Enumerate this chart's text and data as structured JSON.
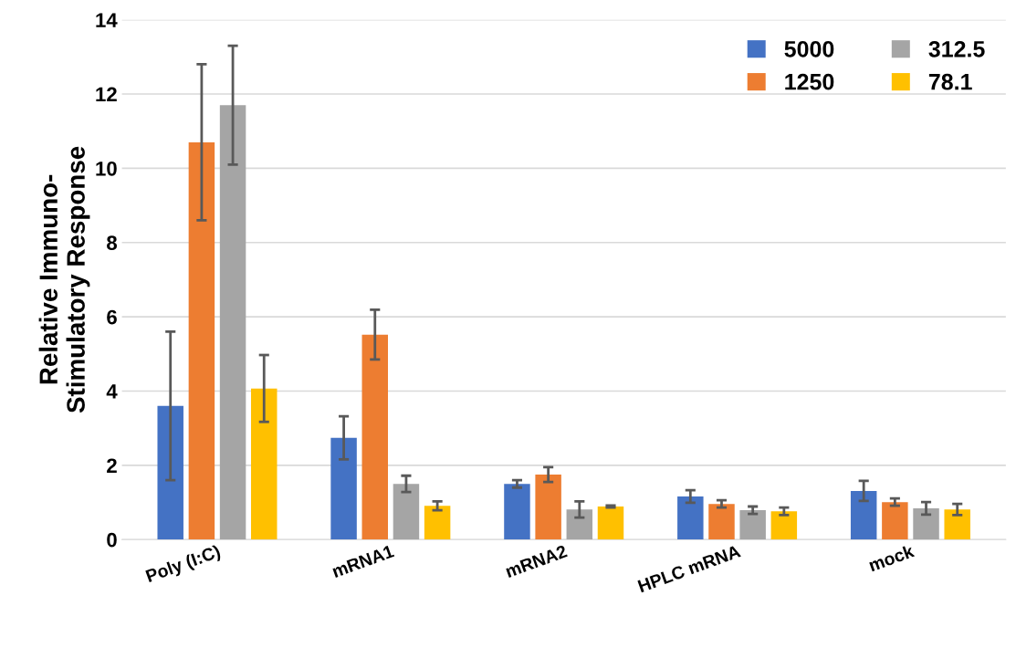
{
  "chart_data": {
    "type": "bar",
    "ylabel": "Relative Immuno-\nStimulatory Response",
    "categories": [
      "Poly (I:C)",
      "mRNA1",
      "mRNA2",
      "HPLC mRNA",
      "mock"
    ],
    "series": [
      {
        "name": "5000",
        "color": "#4472c4",
        "values": [
          3.6,
          2.74,
          1.5,
          1.16,
          1.31
        ],
        "errors": [
          2.0,
          0.58,
          0.1,
          0.17,
          0.27
        ]
      },
      {
        "name": "1250",
        "color": "#ed7d31",
        "values": [
          10.7,
          5.52,
          1.75,
          0.96,
          1.01
        ],
        "errors": [
          2.1,
          0.67,
          0.2,
          0.1,
          0.1
        ]
      },
      {
        "name": "312.5",
        "color": "#a5a5a5",
        "values": [
          11.7,
          1.5,
          0.81,
          0.79,
          0.84
        ],
        "errors": [
          1.6,
          0.22,
          0.22,
          0.1,
          0.17
        ]
      },
      {
        "name": "78.1",
        "color": "#ffc000",
        "values": [
          4.07,
          0.91,
          0.89,
          0.76,
          0.81
        ],
        "errors": [
          0.9,
          0.12,
          0.03,
          0.1,
          0.15
        ]
      }
    ],
    "ylim": [
      0,
      14
    ],
    "yticks": [
      0,
      2,
      4,
      6,
      8,
      10,
      12,
      14
    ],
    "grid": "y",
    "legend": "top right"
  }
}
